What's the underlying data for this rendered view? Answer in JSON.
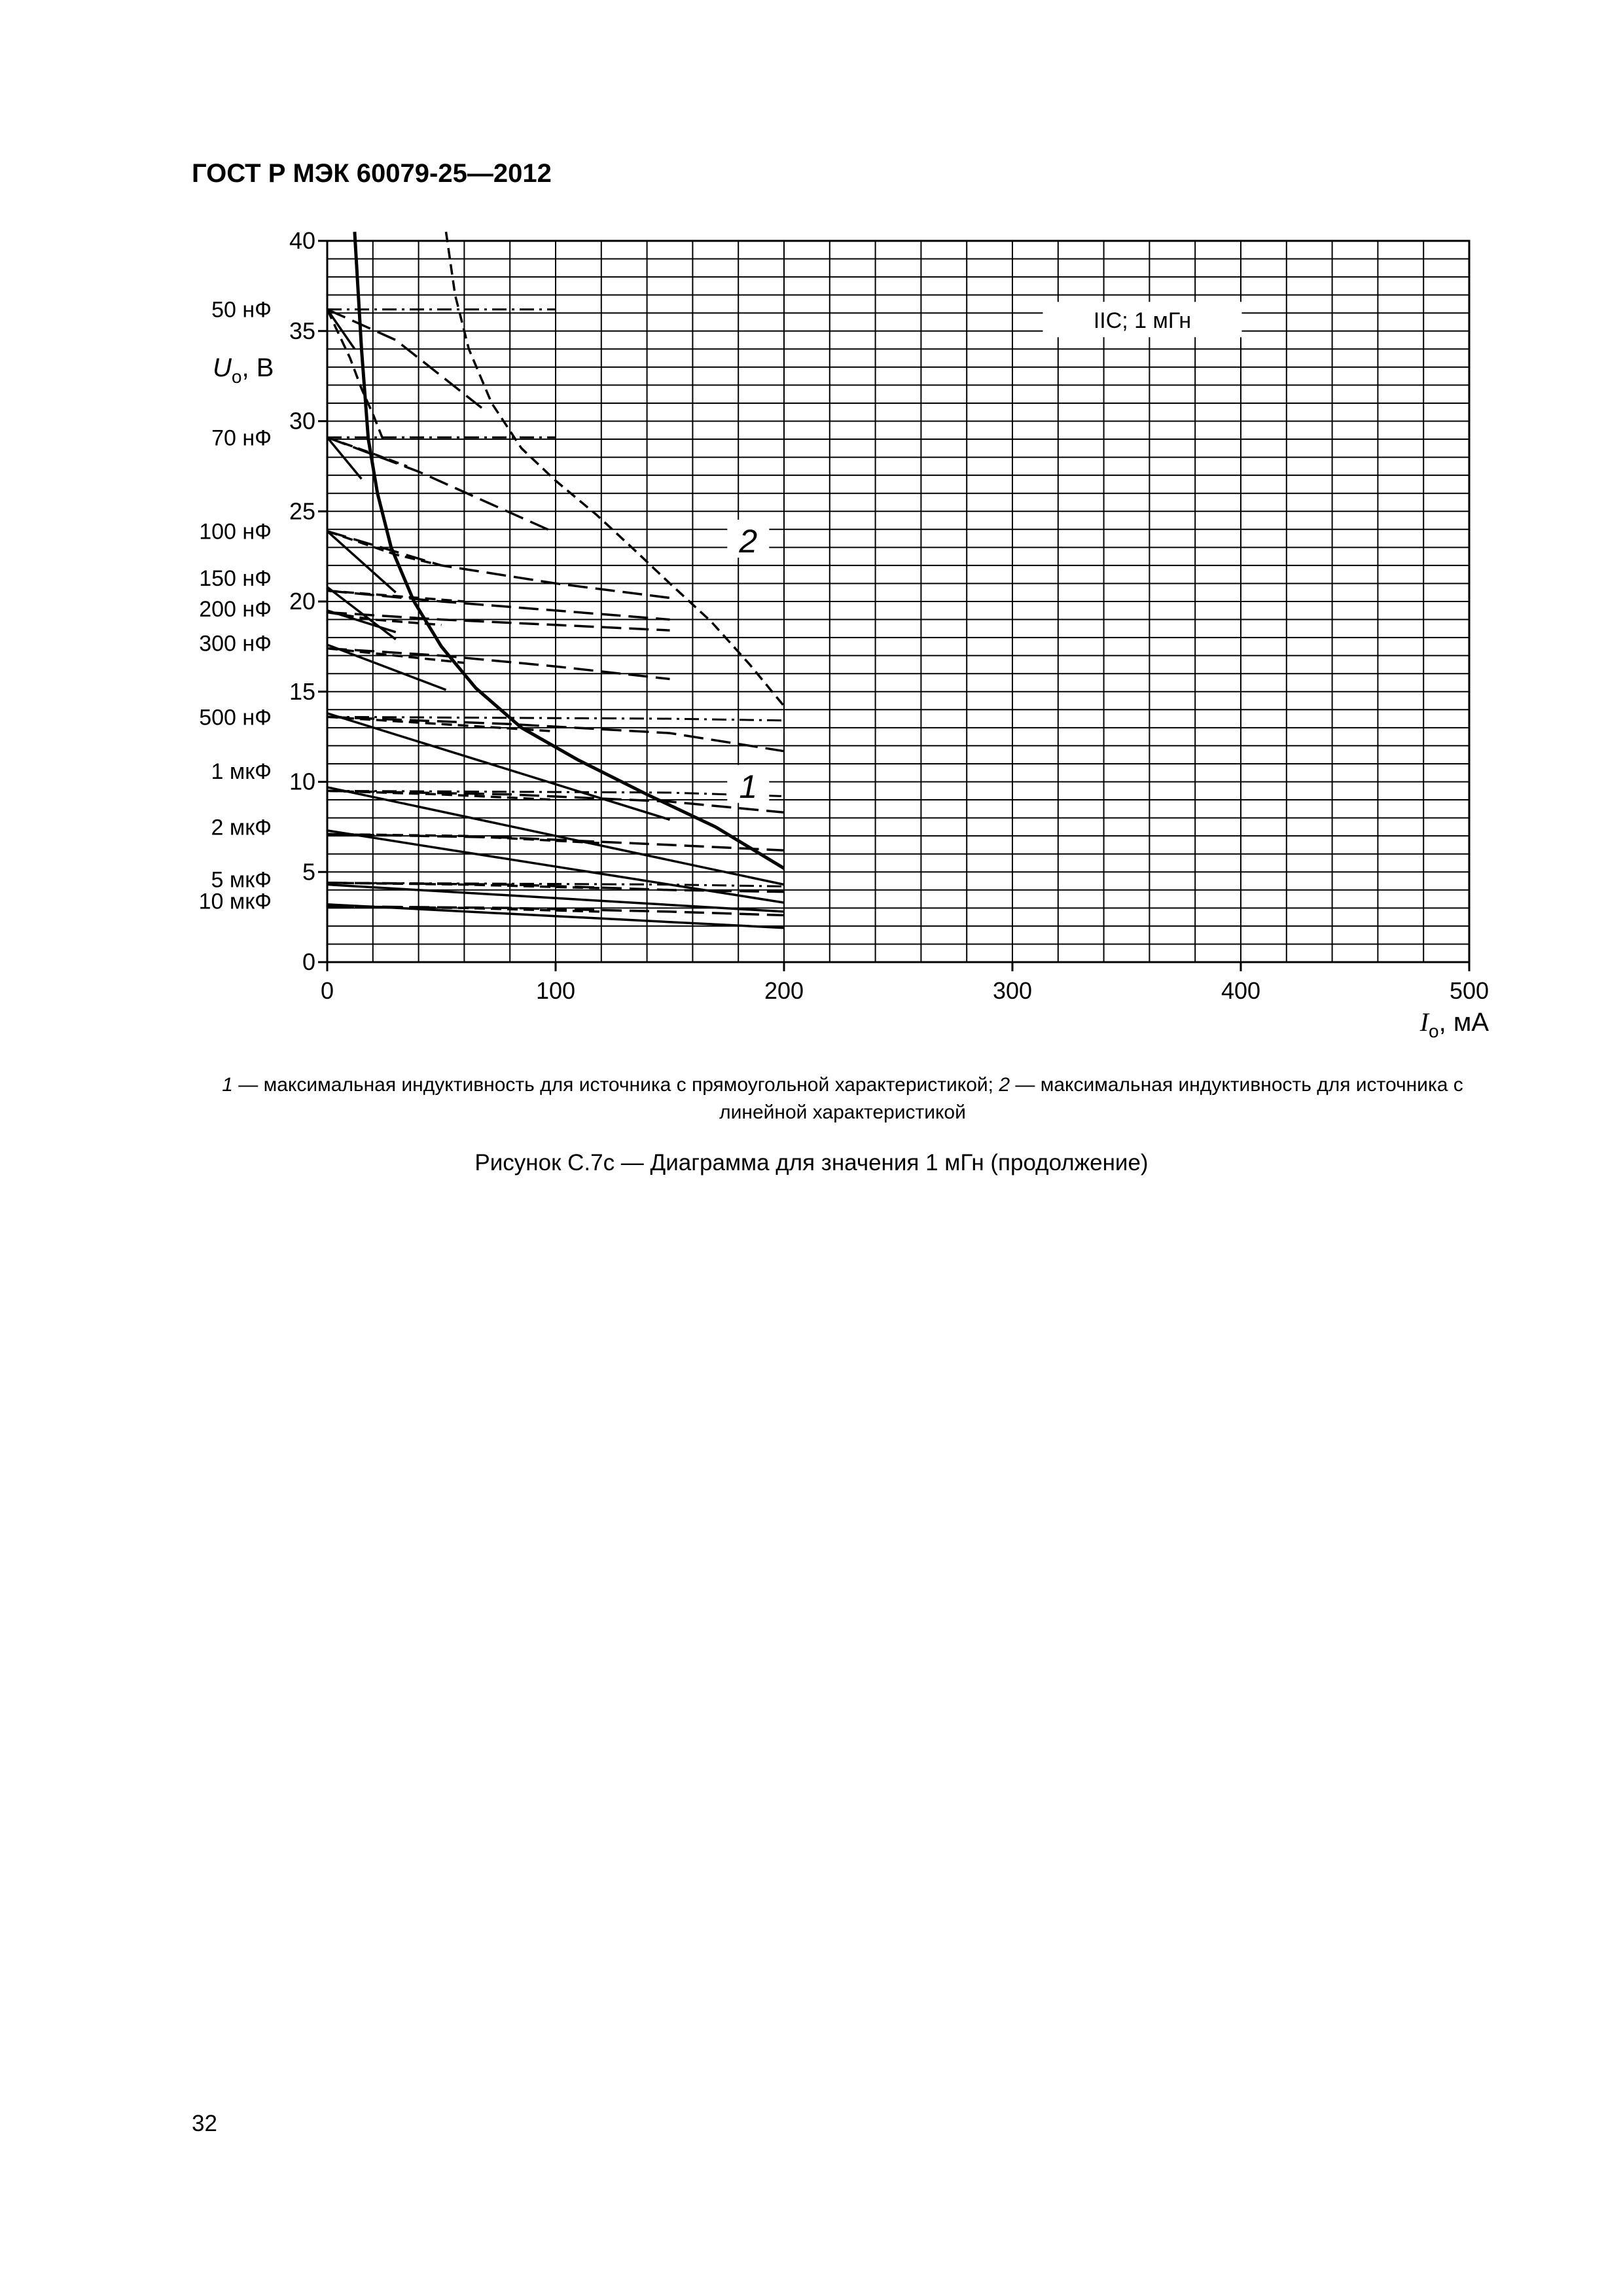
{
  "document": {
    "header": "ГОСТ Р МЭК 60079-25—2012",
    "page_number": "32",
    "figure_title": "Рисунок С.7с — Диаграмма для значения 1 мГн (продолжение)",
    "legend_caption": {
      "num1": "1",
      "text1": " — максимальная индуктивность для источника с прямоугольной характеристикой; ",
      "num2": "2",
      "text2": " — максимальная индуктивность для источника с линейной характеристикой"
    }
  },
  "chart_data": {
    "type": "line",
    "xlim": [
      0,
      500
    ],
    "ylim": [
      0,
      40
    ],
    "x_ticks": [
      0,
      100,
      200,
      300,
      400,
      500
    ],
    "y_ticks": [
      0,
      5,
      10,
      15,
      20,
      25,
      30,
      35,
      40
    ],
    "x_minor_step": 20,
    "y_minor_step": 1,
    "grid": true,
    "xlabel": {
      "symbol": "I",
      "sub": "o",
      "unit": ", мА"
    },
    "ylabel": {
      "symbol": "U",
      "sub": "o",
      "unit": ", В"
    },
    "annotation": "IIC; 1 мГн",
    "curve_labels": [
      {
        "text": "1",
        "x": 170,
        "y": 9.7
      },
      {
        "text": "2",
        "x": 170,
        "y": 23.3
      }
    ],
    "capacitance_labels": [
      {
        "text": "50 нФ",
        "y": 36.2
      },
      {
        "text": "70 нФ",
        "y": 29.1
      },
      {
        "text": "100 нФ",
        "y": 23.9
      },
      {
        "text": "150 нФ",
        "y": 21.3
      },
      {
        "text": "200 нФ",
        "y": 19.6
      },
      {
        "text": "300 нФ",
        "y": 17.7
      },
      {
        "text": "500 нФ",
        "y": 13.6
      },
      {
        "text": "1 мкФ",
        "y": 10.6
      },
      {
        "text": "2 мкФ",
        "y": 7.5
      },
      {
        "text": "5 мкФ",
        "y": 4.6
      },
      {
        "text": "10 мкФ",
        "y": 3.4
      }
    ],
    "series": [
      {
        "style": "solid-bold",
        "points": [
          [
            12,
            40.5
          ],
          [
            15,
            34
          ],
          [
            18,
            29
          ],
          [
            22,
            26
          ],
          [
            28,
            23
          ],
          [
            38,
            20
          ],
          [
            50,
            17.5
          ],
          [
            65,
            15.2
          ],
          [
            85,
            13
          ],
          [
            110,
            11.2
          ],
          [
            140,
            9.3
          ],
          [
            170,
            7.5
          ],
          [
            200,
            5.2
          ]
        ]
      },
      {
        "style": "dashed",
        "points": [
          [
            52,
            40.5
          ],
          [
            56,
            37
          ],
          [
            62,
            34
          ],
          [
            72,
            31
          ],
          [
            85,
            28.5
          ],
          [
            100,
            26.7
          ],
          [
            118,
            24.8
          ],
          [
            135,
            22.8
          ],
          [
            150,
            21
          ],
          [
            168,
            18.9
          ],
          [
            185,
            16.5
          ],
          [
            200,
            14.2
          ]
        ]
      },
      {
        "style": "solid",
        "points": [
          [
            0,
            36.2
          ],
          [
            12,
            34
          ]
        ]
      },
      {
        "style": "solid",
        "points": [
          [
            0,
            29.1
          ],
          [
            15,
            26.8
          ]
        ]
      },
      {
        "style": "solid",
        "points": [
          [
            0,
            23.9
          ],
          [
            30,
            20.5
          ]
        ]
      },
      {
        "style": "solid",
        "points": [
          [
            0,
            20.8
          ],
          [
            30,
            17.9
          ]
        ]
      },
      {
        "style": "solid",
        "points": [
          [
            0,
            19.5
          ],
          [
            30,
            18.3
          ]
        ]
      },
      {
        "style": "solid",
        "points": [
          [
            0,
            17.6
          ],
          [
            52,
            15.1
          ]
        ]
      },
      {
        "style": "solid",
        "points": [
          [
            0,
            13.8
          ],
          [
            150,
            7.9
          ]
        ]
      },
      {
        "style": "solid",
        "points": [
          [
            0,
            9.7
          ],
          [
            200,
            4.3
          ]
        ]
      },
      {
        "style": "solid",
        "points": [
          [
            0,
            7.3
          ],
          [
            200,
            3.3
          ]
        ]
      },
      {
        "style": "solid",
        "points": [
          [
            0,
            4.3
          ],
          [
            200,
            2.8
          ]
        ]
      },
      {
        "style": "solid",
        "points": [
          [
            0,
            3.2
          ],
          [
            200,
            1.9
          ]
        ]
      },
      {
        "style": "dashed",
        "points": [
          [
            0,
            36.2
          ],
          [
            10,
            33.5
          ],
          [
            15,
            31.8
          ],
          [
            20,
            30.4
          ],
          [
            25,
            28.8
          ]
        ]
      },
      {
        "style": "dashed",
        "points": [
          [
            0,
            29.1
          ],
          [
            20,
            28.2
          ],
          [
            35,
            27.5
          ]
        ]
      },
      {
        "style": "dashed",
        "points": [
          [
            0,
            23.9
          ],
          [
            30,
            22.6
          ],
          [
            50,
            22.0
          ]
        ]
      },
      {
        "style": "dashed",
        "points": [
          [
            0,
            20.6
          ],
          [
            40,
            20.2
          ],
          [
            60,
            20.0
          ]
        ]
      },
      {
        "style": "dashed",
        "points": [
          [
            0,
            19.4
          ],
          [
            20,
            19.0
          ],
          [
            50,
            18.7
          ]
        ]
      },
      {
        "style": "dashed",
        "points": [
          [
            0,
            17.4
          ],
          [
            30,
            17.0
          ],
          [
            60,
            16.6
          ]
        ]
      },
      {
        "style": "dashed",
        "points": [
          [
            0,
            13.6
          ],
          [
            50,
            13.2
          ],
          [
            100,
            12.8
          ]
        ]
      },
      {
        "style": "dashed",
        "points": [
          [
            0,
            9.5
          ],
          [
            50,
            9.3
          ],
          [
            100,
            9.0
          ]
        ]
      },
      {
        "style": "dashed",
        "points": [
          [
            0,
            7.1
          ],
          [
            60,
            7.0
          ],
          [
            120,
            6.6
          ]
        ]
      },
      {
        "style": "dashed",
        "points": [
          [
            0,
            4.4
          ],
          [
            60,
            4.3
          ],
          [
            120,
            4.1
          ]
        ]
      },
      {
        "style": "dashed",
        "points": [
          [
            0,
            3.1
          ],
          [
            60,
            3.0
          ],
          [
            120,
            2.8
          ]
        ]
      },
      {
        "style": "long-dashed",
        "points": [
          [
            0,
            36.2
          ],
          [
            30,
            34.5
          ],
          [
            50,
            32.5
          ],
          [
            70,
            30.5
          ]
        ]
      },
      {
        "style": "long-dashed",
        "points": [
          [
            0,
            29.1
          ],
          [
            40,
            27.2
          ],
          [
            70,
            25.5
          ],
          [
            100,
            23.8
          ]
        ]
      },
      {
        "style": "long-dashed",
        "points": [
          [
            0,
            23.9
          ],
          [
            50,
            22.0
          ],
          [
            100,
            21.0
          ],
          [
            150,
            20.2
          ]
        ]
      },
      {
        "style": "long-dashed",
        "points": [
          [
            0,
            20.6
          ],
          [
            50,
            20.0
          ],
          [
            100,
            19.5
          ],
          [
            150,
            19.0
          ]
        ]
      },
      {
        "style": "long-dashed",
        "points": [
          [
            0,
            19.4
          ],
          [
            50,
            19.0
          ],
          [
            100,
            18.7
          ],
          [
            150,
            18.4
          ]
        ]
      },
      {
        "style": "long-dashed",
        "points": [
          [
            0,
            17.4
          ],
          [
            50,
            17.0
          ],
          [
            100,
            16.4
          ],
          [
            150,
            15.7
          ]
        ]
      },
      {
        "style": "long-dashed",
        "points": [
          [
            0,
            13.6
          ],
          [
            80,
            13.2
          ],
          [
            150,
            12.7
          ],
          [
            200,
            11.7
          ]
        ]
      },
      {
        "style": "long-dashed",
        "points": [
          [
            0,
            9.5
          ],
          [
            80,
            9.3
          ],
          [
            150,
            8.9
          ],
          [
            200,
            8.3
          ]
        ]
      },
      {
        "style": "long-dashed",
        "points": [
          [
            0,
            7.1
          ],
          [
            80,
            6.9
          ],
          [
            150,
            6.5
          ],
          [
            200,
            6.2
          ]
        ]
      },
      {
        "style": "long-dashed",
        "points": [
          [
            0,
            4.4
          ],
          [
            80,
            4.3
          ],
          [
            150,
            4.0
          ],
          [
            200,
            3.9
          ]
        ]
      },
      {
        "style": "long-dashed",
        "points": [
          [
            0,
            3.1
          ],
          [
            80,
            3.0
          ],
          [
            150,
            2.8
          ],
          [
            200,
            2.6
          ]
        ]
      },
      {
        "style": "dash-dot",
        "points": [
          [
            0,
            36.2
          ],
          [
            100,
            36.2
          ]
        ]
      },
      {
        "style": "dash-dot",
        "points": [
          [
            0,
            29.1
          ],
          [
            100,
            29.1
          ]
        ]
      },
      {
        "style": "dash-dot",
        "points": [
          [
            0,
            13.6
          ],
          [
            150,
            13.5
          ],
          [
            200,
            13.4
          ]
        ]
      },
      {
        "style": "dash-dot",
        "points": [
          [
            0,
            9.5
          ],
          [
            150,
            9.4
          ],
          [
            200,
            9.2
          ]
        ]
      },
      {
        "style": "dash-dot",
        "points": [
          [
            0,
            4.4
          ],
          [
            150,
            4.3
          ],
          [
            200,
            4.2
          ]
        ]
      }
    ]
  }
}
